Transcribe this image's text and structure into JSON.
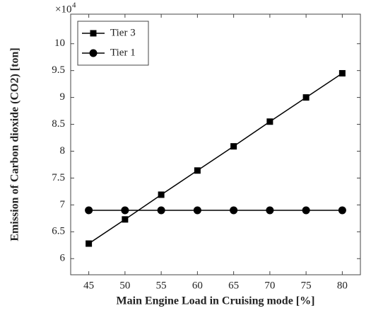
{
  "chart_data": {
    "type": "line",
    "x_label": "Main Engine Load in Cruising mode [%]",
    "y_label": "Emission of Carbon dioxide (CO2) [ton]",
    "y_multiplier": "×10",
    "y_multiplier_exponent": "4",
    "x": [
      45,
      50,
      55,
      60,
      65,
      70,
      75,
      80
    ],
    "series": [
      {
        "name": "Tier 3",
        "color": "#000000",
        "marker": "square",
        "values": [
          6.28,
          6.73,
          7.19,
          7.64,
          8.09,
          8.55,
          9.0,
          9.45
        ]
      },
      {
        "name": "Tier 1",
        "color": "#000000",
        "marker": "circle",
        "values": [
          6.9,
          6.9,
          6.9,
          6.9,
          6.9,
          6.9,
          6.9,
          6.9
        ]
      }
    ],
    "xlim": [
      42.5,
      82.5
    ],
    "xticks": [
      45,
      50,
      55,
      60,
      65,
      70,
      75,
      80
    ],
    "ylim": [
      5.7,
      10.55
    ],
    "yticks": [
      6,
      6.5,
      7,
      7.5,
      8,
      8.5,
      9,
      9.5,
      10
    ],
    "grid": false,
    "legend": "upper-left"
  }
}
